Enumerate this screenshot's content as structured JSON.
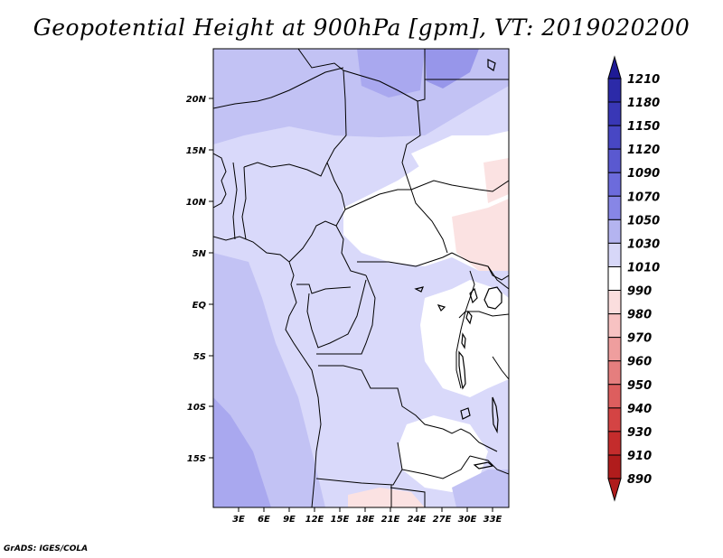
{
  "map": {
    "title": "Geopotential Height at 900hPa [gpm], VT: 2019020200",
    "footer": "GrADS: IGES/COLA",
    "lat_ticks": [
      "20N",
      "15N",
      "10N",
      "5N",
      "EQ",
      "5S",
      "10S",
      "15S"
    ],
    "lon_ticks": [
      "3E",
      "6E",
      "9E",
      "12E",
      "15E",
      "18E",
      "21E",
      "24E",
      "27E",
      "30E",
      "33E"
    ],
    "colorbar": {
      "labels": [
        "1210",
        "1180",
        "1150",
        "1120",
        "1090",
        "1070",
        "1050",
        "1030",
        "1010",
        "990",
        "980",
        "970",
        "960",
        "950",
        "940",
        "930",
        "910",
        "890"
      ],
      "colors": [
        "#1e1a96",
        "#2c2aa8",
        "#3937b6",
        "#4847c4",
        "#5a59d0",
        "#6c6bdc",
        "#8786e6",
        "#b4b4f0",
        "#d7d7f8",
        "#ffffff",
        "#fbdede",
        "#f7c2c2",
        "#ef9e9e",
        "#e57e7e",
        "#dd5e5e",
        "#d44444",
        "#c42c2c",
        "#b01c1c"
      ]
    },
    "field_colors": {
      "light": "#d9d9fa",
      "medium": "#c2c2f4",
      "strong": "#a9a8ef",
      "deep": "#9796ea",
      "white": "#ffffff",
      "pink": "#fbe2e2"
    }
  }
}
